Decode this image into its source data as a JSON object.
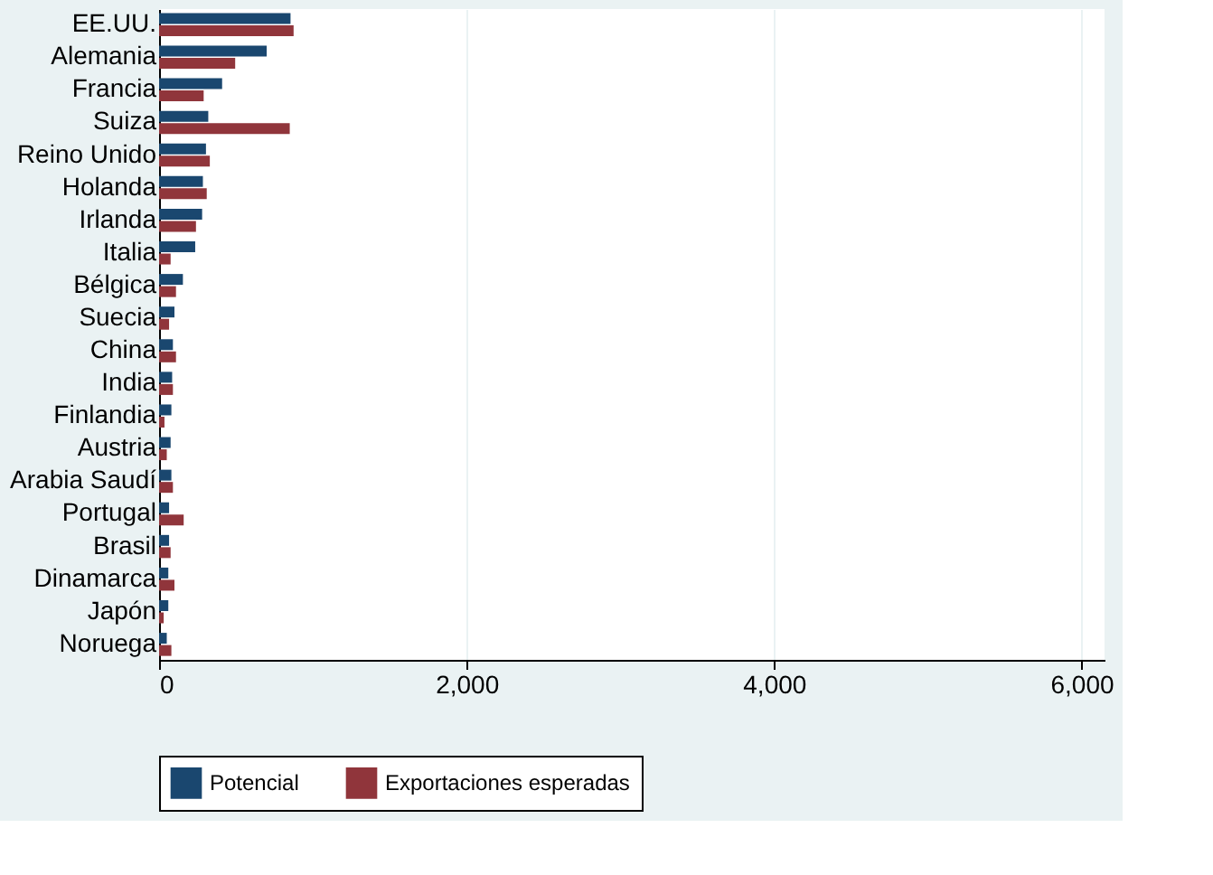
{
  "chart_data": {
    "type": "bar",
    "orientation": "horizontal",
    "categories": [
      "EE.UU.",
      "Alemania",
      "Francia",
      "Suiza",
      "Reino Unido",
      "Holanda",
      "Irlanda",
      "Italia",
      "Bélgica",
      "Suecia",
      "China",
      "India",
      "Finlandia",
      "Austria",
      "Arabia Saudí",
      "Portugal",
      "Brasil",
      "Dinamarca",
      "Japón",
      "Noruega"
    ],
    "series": [
      {
        "name": "Potencial",
        "color": "#1a476f",
        "values": [
          855,
          700,
          410,
          320,
          305,
          285,
          280,
          235,
          155,
          100,
          90,
          85,
          80,
          75,
          80,
          65,
          65,
          60,
          60,
          50
        ]
      },
      {
        "name": "Exportaciones esperadas",
        "color": "#90353b",
        "values": [
          875,
          495,
          290,
          850,
          330,
          310,
          240,
          75,
          110,
          65,
          110,
          90,
          35,
          50,
          90,
          160,
          75,
          100,
          30,
          80
        ]
      }
    ],
    "xlim": [
      0,
      6150
    ],
    "xticks": [
      {
        "value": 0,
        "label": "0"
      },
      {
        "value": 2000,
        "label": "2,000"
      },
      {
        "value": 4000,
        "label": "4,000"
      },
      {
        "value": 6000,
        "label": "6,000"
      }
    ],
    "grid": "x",
    "legend": "bottom"
  }
}
